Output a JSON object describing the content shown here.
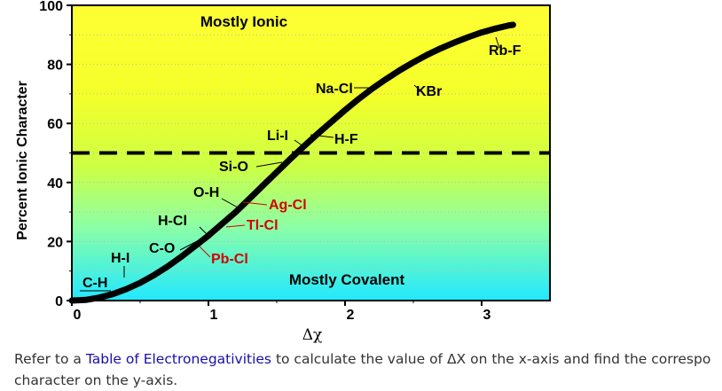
{
  "chart_data": {
    "type": "line",
    "title": "",
    "xlabel": "Δχ",
    "ylabel": "Percent Ionic Character",
    "xlim": [
      0,
      3.5
    ],
    "ylim": [
      0,
      100
    ],
    "x_ticks": [
      "0",
      "1",
      "2",
      "3"
    ],
    "y_ticks": [
      "0",
      "20",
      "40",
      "60",
      "80",
      "100"
    ],
    "x_tick_values": [
      0,
      1,
      2,
      3
    ],
    "y_tick_values": [
      0,
      20,
      40,
      60,
      80,
      100
    ],
    "grid": true,
    "series": [
      {
        "x": [
          0,
          0.1,
          0.2,
          0.3,
          0.4,
          0.5,
          0.6,
          0.7,
          0.8,
          0.9,
          1.0,
          1.1,
          1.2,
          1.3,
          1.4,
          1.5,
          1.6,
          1.7,
          1.8,
          1.9,
          2.0,
          2.1,
          2.2,
          2.3,
          2.4,
          2.5,
          2.6,
          2.7,
          2.8,
          2.9,
          3.0,
          3.1,
          3.2,
          3.23
        ],
        "y": [
          0,
          0.2,
          1,
          2.2,
          3.9,
          6,
          8.6,
          11.5,
          14.8,
          18.4,
          22,
          26,
          30,
          34.5,
          39,
          43.5,
          48,
          52.3,
          56.5,
          60.5,
          64.5,
          68.3,
          71.8,
          75,
          78,
          80.7,
          83.2,
          85.4,
          87.4,
          89.2,
          90.8,
          92.1,
          93.2,
          93.4
        ]
      }
    ],
    "threshold_line": {
      "y": 50,
      "style": "dashed"
    },
    "region_labels": {
      "upper": "Mostly Ionic",
      "lower": "Mostly Covalent"
    },
    "annotations": [
      {
        "label": "C-H",
        "x": 0.35,
        "y": 2,
        "color": "#000000"
      },
      {
        "label": "H-I",
        "x": 0.4,
        "y": 4,
        "color": "#000000"
      },
      {
        "label": "C-O",
        "x": 0.85,
        "y": 17,
        "color": "#000000"
      },
      {
        "label": "H-Cl",
        "x": 0.9,
        "y": 19,
        "color": "#000000"
      },
      {
        "label": "Pb-Cl",
        "x": 0.88,
        "y": 18,
        "color": "#d40000"
      },
      {
        "label": "O-H",
        "x": 1.25,
        "y": 31,
        "color": "#000000"
      },
      {
        "label": "Ag-Cl",
        "x": 1.32,
        "y": 32,
        "color": "#d40000"
      },
      {
        "label": "Tl-Cl",
        "x": 1.0,
        "y": 22,
        "color": "#d40000"
      },
      {
        "label": "Si-O",
        "x": 1.7,
        "y": 49,
        "color": "#000000"
      },
      {
        "label": "Li-I",
        "x": 1.65,
        "y": 51,
        "color": "#000000"
      },
      {
        "label": "H-F",
        "x": 1.65,
        "y": 52,
        "color": "#000000"
      },
      {
        "label": "Na-Cl",
        "x": 2.1,
        "y": 69,
        "color": "#000000"
      },
      {
        "label": "KBr",
        "x": 2.4,
        "y": 78,
        "color": "#000000"
      },
      {
        "label": "Rb-F",
        "x": 3.1,
        "y": 92,
        "color": "#000000"
      }
    ]
  },
  "caption": {
    "prefix": "Refer to a ",
    "link_text": "Table of Electronegativities",
    "suffix": " to calculate the value of ΔX on the x-axis and find the correspo",
    "line2": "character on the y-axis."
  }
}
